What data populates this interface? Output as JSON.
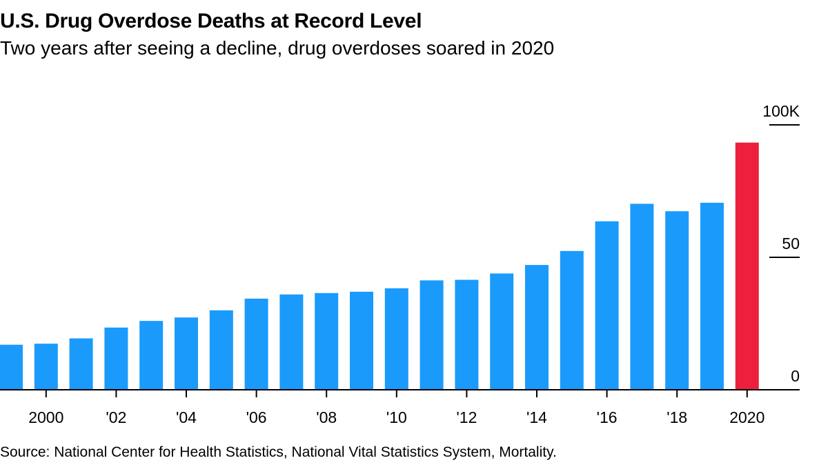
{
  "title": "U.S. Drug Overdose Deaths at Record Level",
  "subtitle": "Two years after seeing a decline, drug overdoses soared in 2020",
  "source": "Source: National Center for Health Statistics, National Vital Statistics System, Mortality.",
  "colors": {
    "bar": "#1a9bfc",
    "highlight": "#ee1f3d",
    "axis": "#000000"
  },
  "chart_data": {
    "type": "bar",
    "title": "U.S. Drug Overdose Deaths at Record Level",
    "subtitle": "Two years after seeing a decline, drug overdoses soared in 2020",
    "xlabel": "",
    "ylabel": "",
    "ylim": [
      0,
      100
    ],
    "yunit": "thousands of deaths",
    "y_ticks": [
      {
        "value": 0,
        "label": "0"
      },
      {
        "value": 50,
        "label": "50"
      },
      {
        "value": 100,
        "label": "100K"
      }
    ],
    "y_axis_side": "right",
    "grid": false,
    "categories": [
      "1999",
      "2000",
      "2001",
      "2002",
      "2003",
      "2004",
      "2005",
      "2006",
      "2007",
      "2008",
      "2009",
      "2010",
      "2011",
      "2012",
      "2013",
      "2014",
      "2015",
      "2016",
      "2017",
      "2018",
      "2019",
      "2020"
    ],
    "values": [
      17.0,
      17.4,
      19.4,
      23.5,
      26.0,
      27.3,
      30.0,
      34.4,
      36.0,
      36.5,
      37.0,
      38.3,
      41.3,
      41.5,
      43.9,
      47.1,
      52.4,
      63.6,
      70.2,
      67.4,
      70.6,
      93.3
    ],
    "highlight_category": "2020",
    "x_ticks": [
      {
        "category": "2000",
        "label": "2000"
      },
      {
        "category": "2002",
        "label": "'02"
      },
      {
        "category": "2004",
        "label": "'04"
      },
      {
        "category": "2006",
        "label": "'06"
      },
      {
        "category": "2008",
        "label": "'08"
      },
      {
        "category": "2010",
        "label": "'10"
      },
      {
        "category": "2012",
        "label": "'12"
      },
      {
        "category": "2014",
        "label": "'14"
      },
      {
        "category": "2016",
        "label": "'16"
      },
      {
        "category": "2018",
        "label": "'18"
      },
      {
        "category": "2020",
        "label": "2020"
      }
    ],
    "legend": "none"
  }
}
